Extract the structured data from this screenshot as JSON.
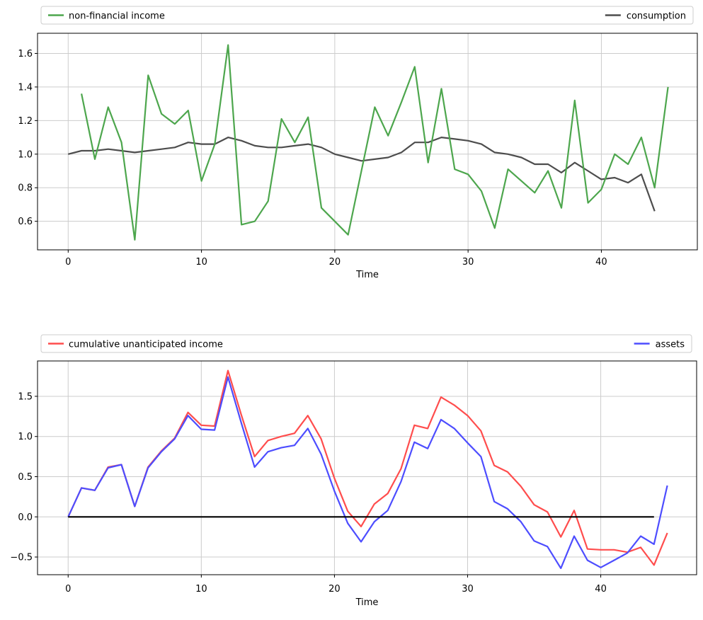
{
  "chart_data": [
    {
      "type": "line",
      "title": "",
      "xlabel": "Time",
      "ylabel": "",
      "grid": true,
      "legend_position": "top-expand",
      "xlim": [
        -2.3,
        47.2
      ],
      "ylim": [
        0.43,
        1.72
      ],
      "x_ticks": [
        0,
        10,
        20,
        30,
        40
      ],
      "x_tick_labels": [
        "0",
        "10",
        "20",
        "30",
        "40"
      ],
      "y_ticks": [
        0.6,
        0.8,
        1.0,
        1.2,
        1.4,
        1.6
      ],
      "y_tick_labels": [
        "0.6",
        "0.8",
        "1.0",
        "1.2",
        "1.4",
        "1.6"
      ],
      "series": [
        {
          "name": "non-financial income",
          "color": "#4da64d",
          "linewidth": 2.2,
          "x_start": 1,
          "y": [
            1.36,
            0.97,
            1.28,
            1.07,
            0.49,
            1.47,
            1.24,
            1.18,
            1.26,
            0.84,
            1.06,
            1.65,
            0.58,
            0.6,
            0.72,
            1.21,
            1.07,
            1.22,
            0.68,
            0.6,
            0.52,
            0.9,
            1.28,
            1.11,
            1.31,
            1.52,
            0.95,
            1.39,
            0.91,
            0.88,
            0.78,
            0.56,
            0.91,
            0.84,
            0.77,
            0.9,
            0.68,
            1.32,
            0.71,
            0.79,
            1.0,
            0.94,
            1.1,
            0.8,
            1.4
          ]
        },
        {
          "name": "consumption",
          "color": "#4d4d4d",
          "linewidth": 2.2,
          "x_start": 0,
          "y": [
            1.0,
            1.02,
            1.02,
            1.03,
            1.02,
            1.01,
            1.02,
            1.03,
            1.04,
            1.07,
            1.06,
            1.06,
            1.1,
            1.08,
            1.05,
            1.04,
            1.04,
            1.05,
            1.06,
            1.04,
            1.0,
            0.98,
            0.96,
            0.97,
            0.98,
            1.01,
            1.07,
            1.07,
            1.1,
            1.09,
            1.08,
            1.06,
            1.01,
            1.0,
            0.98,
            0.94,
            0.94,
            0.89,
            0.95,
            0.9,
            0.85,
            0.86,
            0.83,
            0.88,
            0.66
          ]
        }
      ]
    },
    {
      "type": "line",
      "title": "",
      "xlabel": "Time",
      "ylabel": "",
      "grid": true,
      "legend_position": "top-expand",
      "xlim": [
        -2.3,
        47.2
      ],
      "ylim": [
        -0.72,
        1.94
      ],
      "x_ticks": [
        0,
        10,
        20,
        30,
        40
      ],
      "x_tick_labels": [
        "0",
        "10",
        "20",
        "30",
        "40"
      ],
      "y_ticks": [
        -0.5,
        0.0,
        0.5,
        1.0,
        1.5
      ],
      "y_tick_labels": [
        "−0.5",
        "0.0",
        "0.5",
        "1.0",
        "1.5"
      ],
      "series": [
        {
          "name": "cumulative unanticipated income",
          "color": "#ff4d4d",
          "linewidth": 2.2,
          "x_start": 0,
          "y": [
            0.0,
            0.36,
            0.33,
            0.62,
            0.65,
            0.13,
            0.62,
            0.82,
            0.98,
            1.3,
            1.14,
            1.13,
            1.82,
            1.27,
            0.75,
            0.95,
            1.0,
            1.04,
            1.26,
            0.97,
            0.48,
            0.07,
            -0.12,
            0.16,
            0.29,
            0.6,
            1.14,
            1.1,
            1.49,
            1.39,
            1.26,
            1.07,
            0.64,
            0.56,
            0.38,
            0.15,
            0.06,
            -0.25,
            0.08,
            -0.4,
            -0.41,
            -0.41,
            -0.44,
            -0.38,
            -0.6,
            -0.2
          ]
        },
        {
          "name": "assets",
          "color": "#4d4dff",
          "linewidth": 2.2,
          "x_start": 0,
          "y": [
            0.0,
            0.36,
            0.33,
            0.61,
            0.65,
            0.13,
            0.61,
            0.81,
            0.97,
            1.26,
            1.09,
            1.08,
            1.74,
            1.17,
            0.62,
            0.81,
            0.86,
            0.89,
            1.1,
            0.78,
            0.32,
            -0.08,
            -0.31,
            -0.06,
            0.08,
            0.44,
            0.93,
            0.85,
            1.21,
            1.1,
            0.92,
            0.75,
            0.19,
            0.1,
            -0.06,
            -0.3,
            -0.37,
            -0.64,
            -0.24,
            -0.54,
            -0.63,
            -0.54,
            -0.45,
            -0.24,
            -0.34,
            0.39
          ]
        },
        {
          "name": "zero baseline",
          "color": "#000000",
          "linewidth": 2.2,
          "in_legend": false,
          "x": [
            0,
            44
          ],
          "y": [
            0,
            0
          ]
        }
      ]
    }
  ],
  "style": {
    "grid_color": "#cccccc",
    "spine_color": "#000000",
    "legend_border_color": "#cccccc",
    "legend_background": "#ffffff"
  }
}
